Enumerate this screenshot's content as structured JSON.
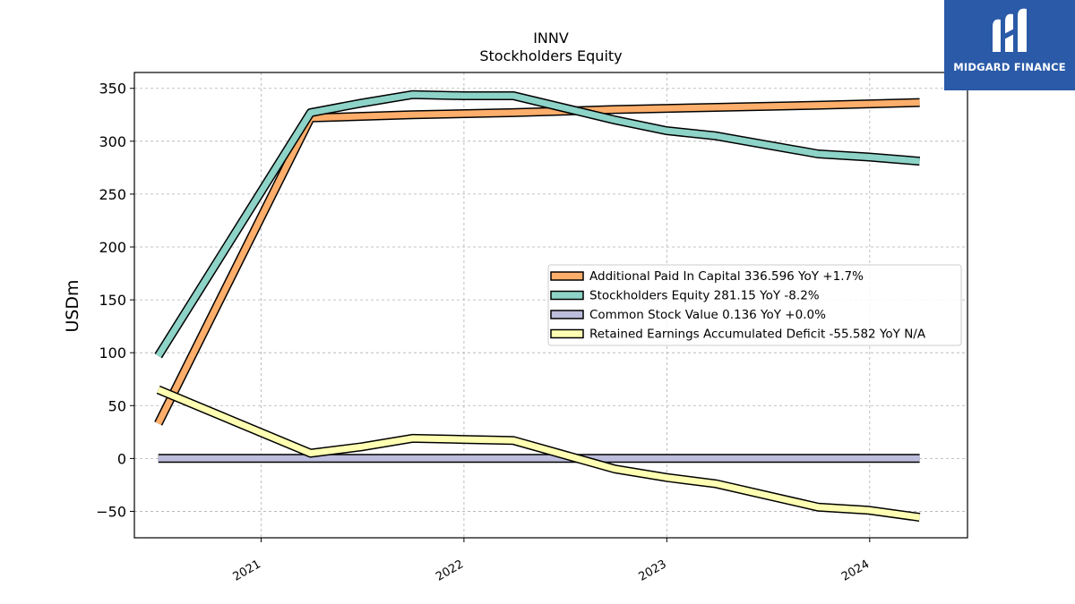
{
  "brand": {
    "name": "MIDGARD FINANCE",
    "bg_color": "#2a5aa8"
  },
  "chart_data": {
    "type": "line",
    "title": "INNV",
    "subtitle": "Stockholders  Equity",
    "ylabel": "USDm",
    "xlabel": "",
    "ylim": [
      -75,
      365
    ],
    "yticks": [
      -50,
      0,
      50,
      100,
      150,
      200,
      250,
      300,
      350
    ],
    "ytick_labels": [
      "−50",
      "0",
      "50",
      "100",
      "150",
      "200",
      "250",
      "300",
      "350"
    ],
    "xlim": [
      "2020-05-18",
      "2024-06-25"
    ],
    "xticks": [
      "2021-01-01",
      "2022-01-01",
      "2023-01-01",
      "2024-01-01"
    ],
    "xtick_labels": [
      "2021",
      "2022",
      "2023",
      "2024"
    ],
    "grid": true,
    "legend_position": "center-right",
    "series": [
      {
        "name": "Additional Paid In Capital",
        "legend_label": "Additional Paid In Capital  336.596 YoY +1.7%",
        "color": "#fdae6b",
        "points": [
          [
            "2020-06-30",
            33
          ],
          [
            "2021-03-31",
            322
          ],
          [
            "2021-09-30",
            325
          ],
          [
            "2022-03-31",
            327
          ],
          [
            "2022-09-30",
            330
          ],
          [
            "2023-03-31",
            332
          ],
          [
            "2023-09-30",
            334
          ],
          [
            "2024-03-31",
            336.596
          ]
        ]
      },
      {
        "name": "Stockholders Equity",
        "legend_label": "Stockholders Equity  281.15 YoY -8.2%",
        "color": "#8dd3c7",
        "points": [
          [
            "2020-06-30",
            97
          ],
          [
            "2021-03-31",
            327
          ],
          [
            "2021-06-30",
            336
          ],
          [
            "2021-09-30",
            344
          ],
          [
            "2021-12-31",
            343
          ],
          [
            "2022-03-31",
            343
          ],
          [
            "2022-09-30",
            320
          ],
          [
            "2022-12-31",
            310
          ],
          [
            "2023-03-31",
            305
          ],
          [
            "2023-09-30",
            288
          ],
          [
            "2023-12-31",
            285
          ],
          [
            "2024-03-31",
            281.15
          ]
        ]
      },
      {
        "name": "Common Stock Value",
        "legend_label": "Common Stock Value  0.136 YoY +0.0%",
        "color": "#bcbddc",
        "points": [
          [
            "2020-06-30",
            0.136
          ],
          [
            "2024-03-31",
            0.136
          ]
        ]
      },
      {
        "name": "Retained Earnings Accumulated Deficit",
        "legend_label": "Retained Earnings Accumulated Deficit  -55.582 YoY N/A",
        "color": "#ffffb3",
        "points": [
          [
            "2020-06-30",
            65
          ],
          [
            "2021-03-31",
            5
          ],
          [
            "2021-06-30",
            11
          ],
          [
            "2021-09-30",
            19
          ],
          [
            "2021-12-31",
            18
          ],
          [
            "2022-03-31",
            17
          ],
          [
            "2022-09-30",
            -10
          ],
          [
            "2022-12-31",
            -18
          ],
          [
            "2023-03-31",
            -24
          ],
          [
            "2023-09-30",
            -46
          ],
          [
            "2023-12-31",
            -49
          ],
          [
            "2024-03-31",
            -55.582
          ]
        ]
      }
    ]
  }
}
